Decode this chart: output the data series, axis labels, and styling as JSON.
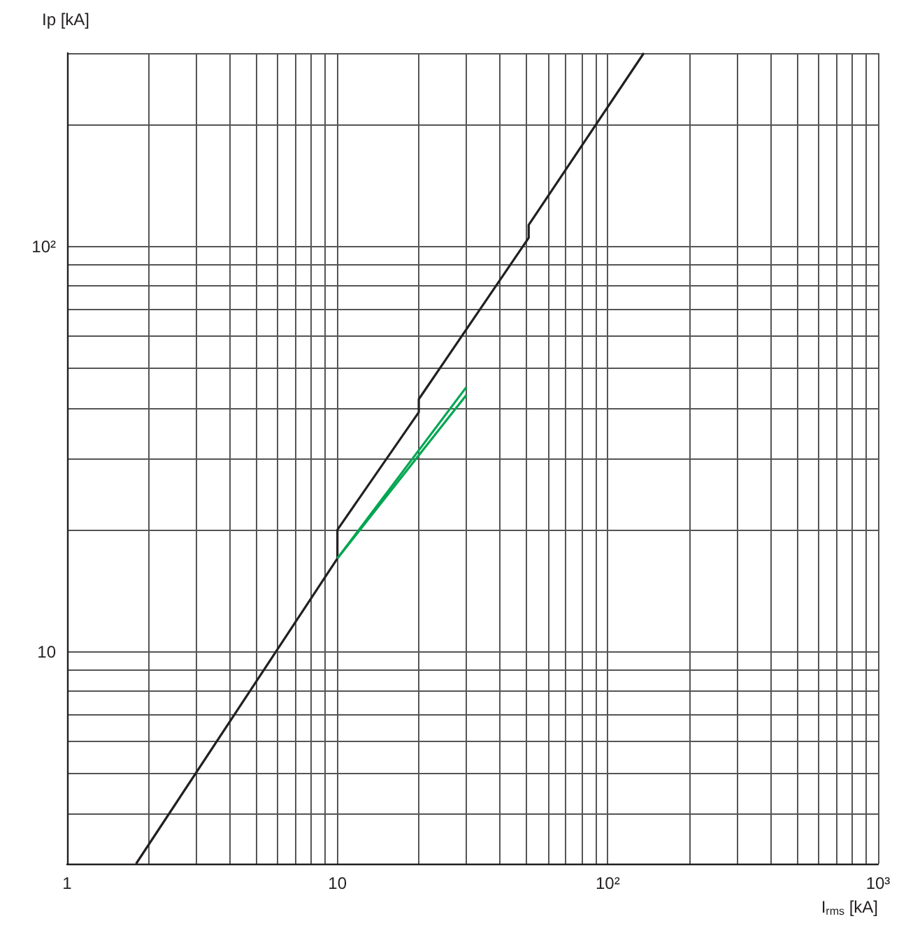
{
  "chart_data": {
    "type": "line",
    "xlabel": "I$_{rms}$ [kA]",
    "ylabel": "Ip [kA]",
    "log": "xy",
    "grid": true,
    "marker": "none",
    "line_style": "solid",
    "xlim": [
      1,
      1000
    ],
    "ylim": [
      3,
      300
    ],
    "xticks": [
      1,
      {
        "value": 2,
        "label": null
      },
      {
        "value": 3,
        "label": null
      },
      {
        "value": 4,
        "label": null
      },
      {
        "value": 5,
        "label": null
      },
      {
        "value": 6,
        "label": null
      },
      {
        "value": 7,
        "label": null
      },
      {
        "value": 8,
        "label": null
      },
      {
        "value": 9,
        "label": null
      },
      10,
      {
        "value": 20,
        "label": null
      },
      {
        "value": 30,
        "label": null
      },
      {
        "value": 40,
        "label": null
      },
      {
        "value": 50,
        "label": null
      },
      {
        "value": 60,
        "label": null
      },
      {
        "value": 70,
        "label": null
      },
      {
        "value": 80,
        "label": null
      },
      {
        "value": 90,
        "label": null
      },
      {
        "value": 100,
        "label": "10²"
      },
      {
        "value": 200,
        "label": null
      },
      {
        "value": 300,
        "label": null
      },
      {
        "value": 400,
        "label": null
      },
      {
        "value": 500,
        "label": null
      },
      {
        "value": 600,
        "label": null
      },
      {
        "value": 700,
        "label": null
      },
      {
        "value": 800,
        "label": null
      },
      {
        "value": 900,
        "label": null
      },
      {
        "value": 1000,
        "label": "10³"
      }
    ],
    "yticks": [
      {
        "value": 3,
        "label": null
      },
      {
        "value": 4,
        "label": null
      },
      {
        "value": 5,
        "label": null
      },
      {
        "value": 6,
        "label": null
      },
      {
        "value": 7,
        "label": null
      },
      {
        "value": 8,
        "label": null
      },
      {
        "value": 9,
        "label": null
      },
      10,
      {
        "value": 20,
        "label": null
      },
      {
        "value": 30,
        "label": null
      },
      {
        "value": 40,
        "label": null
      },
      {
        "value": 50,
        "label": null
      },
      {
        "value": 60,
        "label": null
      },
      {
        "value": 70,
        "label": null
      },
      {
        "value": 80,
        "label": null
      },
      {
        "value": 90,
        "label": null
      },
      {
        "value": 100,
        "label": "10²"
      },
      {
        "value": 200,
        "label": null
      },
      {
        "value": 300,
        "label": null
      }
    ],
    "series": [
      {
        "color": "#231f20",
        "x": [
          1.8,
          10,
          10,
          20,
          20,
          51,
          51,
          136
        ],
        "values": [
          3,
          17,
          20,
          39,
          42,
          105,
          113,
          300
        ]
      },
      {
        "color": "#00a651",
        "x": [
          10,
          30
        ],
        "values": [
          17,
          45
        ]
      },
      {
        "color": "#00a651",
        "x": [
          10,
          30
        ],
        "values": [
          17,
          43
        ]
      }
    ]
  }
}
